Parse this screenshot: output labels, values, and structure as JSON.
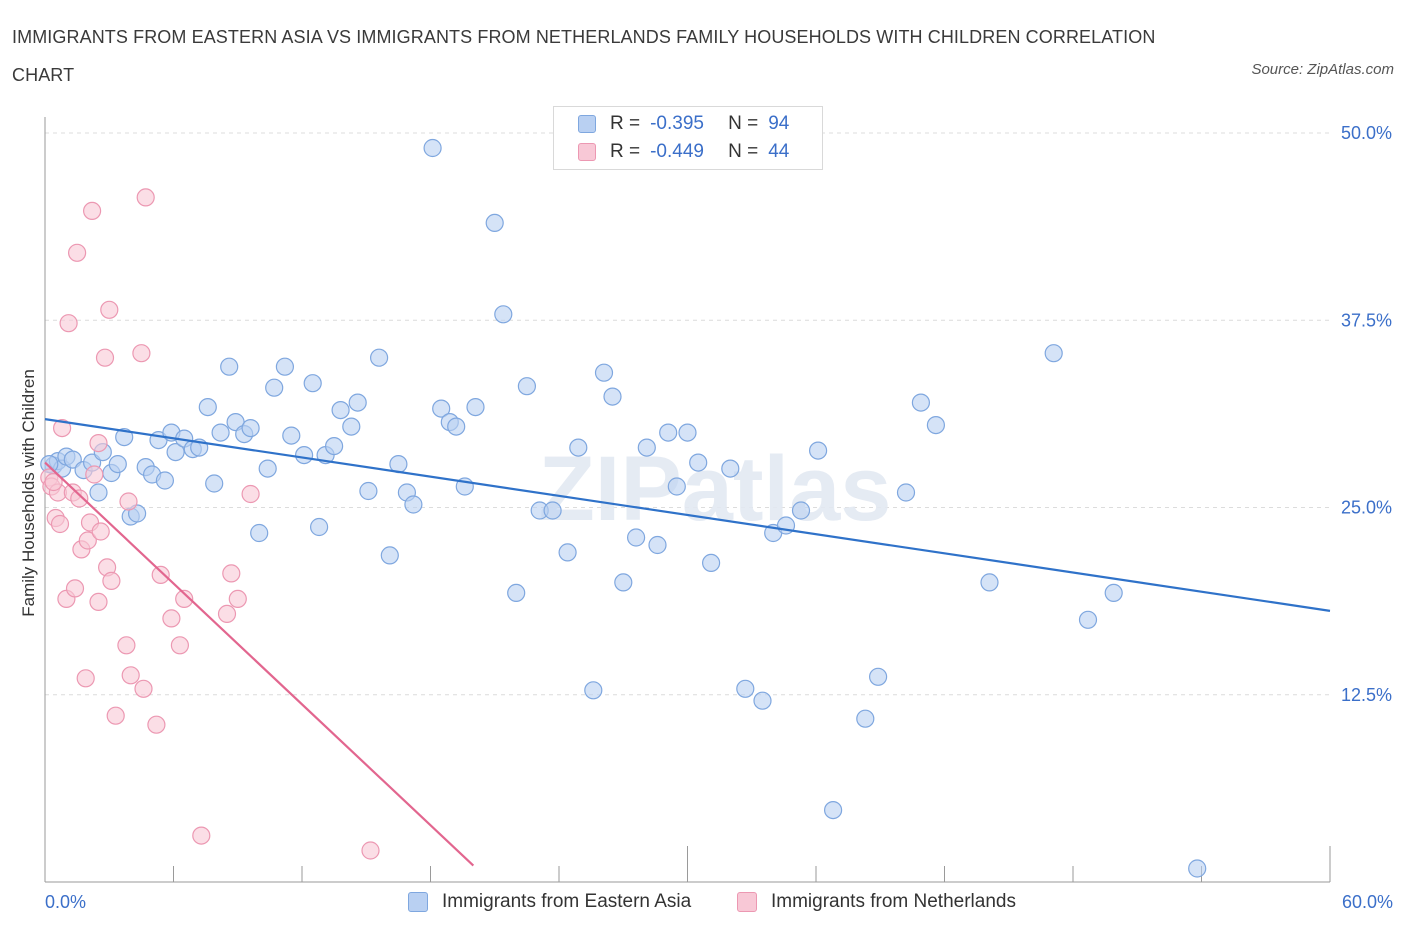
{
  "title": "IMMIGRANTS FROM EASTERN ASIA VS IMMIGRANTS FROM NETHERLANDS FAMILY HOUSEHOLDS WITH CHILDREN CORRELATION CHART",
  "source": "Source: ZipAtlas.com",
  "watermark": "ZIPatlas",
  "colors": {
    "blue_fill": "#b9d0f2",
    "blue_stroke": "#7fa7df",
    "blue_line": "#2f72c9",
    "pink_fill": "#f8c8d6",
    "pink_stroke": "#ec98b2",
    "pink_line": "#e2668f",
    "tick_text": "#3b6fc9"
  },
  "legend": {
    "r_label": "R =",
    "n_label": "N =",
    "rows": [
      {
        "series": "blue",
        "r": "-0.395",
        "n": "94"
      },
      {
        "series": "pink",
        "r": "-0.449",
        "n": "44"
      }
    ]
  },
  "chart_data": {
    "type": "scatter",
    "title": "IMMIGRANTS FROM EASTERN ASIA VS IMMIGRANTS FROM NETHERLANDS FAMILY HOUSEHOLDS WITH CHILDREN CORRELATION CHART",
    "xlabel": "",
    "ylabel": "Family Households with Children",
    "xlim": [
      0,
      60
    ],
    "ylim": [
      0,
      52
    ],
    "x_tick_labels": [
      "0.0%",
      "60.0%"
    ],
    "y_ticks": [
      12.5,
      25.0,
      37.5,
      50.0
    ],
    "y_tick_labels": [
      "12.5%",
      "25.0%",
      "37.5%",
      "50.0%"
    ],
    "grid": true,
    "legend_position": "top-center",
    "series": [
      {
        "name": "Immigrants from Eastern Asia",
        "color": "blue",
        "trend": {
          "x": [
            0,
            60
          ],
          "y": [
            30.9,
            18.1
          ]
        },
        "points": [
          [
            0.4,
            27.8
          ],
          [
            0.6,
            28.1
          ],
          [
            0.8,
            27.6
          ],
          [
            1.0,
            28.4
          ],
          [
            1.3,
            28.2
          ],
          [
            1.8,
            27.5
          ],
          [
            2.2,
            28.0
          ],
          [
            2.5,
            26.0
          ],
          [
            2.7,
            28.7
          ],
          [
            3.1,
            27.3
          ],
          [
            3.4,
            27.9
          ],
          [
            3.7,
            29.7
          ],
          [
            4.0,
            24.4
          ],
          [
            4.3,
            24.6
          ],
          [
            4.7,
            27.7
          ],
          [
            5.0,
            27.2
          ],
          [
            5.3,
            29.5
          ],
          [
            5.6,
            26.8
          ],
          [
            5.9,
            30.0
          ],
          [
            6.1,
            28.7
          ],
          [
            6.5,
            29.6
          ],
          [
            6.9,
            28.9
          ],
          [
            7.2,
            29.0
          ],
          [
            7.6,
            31.7
          ],
          [
            7.9,
            26.6
          ],
          [
            8.2,
            30.0
          ],
          [
            8.6,
            34.4
          ],
          [
            8.9,
            30.7
          ],
          [
            9.3,
            29.9
          ],
          [
            9.6,
            30.3
          ],
          [
            10.0,
            23.3
          ],
          [
            10.4,
            27.6
          ],
          [
            10.7,
            33.0
          ],
          [
            11.2,
            34.4
          ],
          [
            11.5,
            29.8
          ],
          [
            12.1,
            28.5
          ],
          [
            12.5,
            33.3
          ],
          [
            12.8,
            23.7
          ],
          [
            13.1,
            28.5
          ],
          [
            13.5,
            29.1
          ],
          [
            13.8,
            31.5
          ],
          [
            14.3,
            30.4
          ],
          [
            14.6,
            32.0
          ],
          [
            15.1,
            26.1
          ],
          [
            15.6,
            35.0
          ],
          [
            16.1,
            21.8
          ],
          [
            16.5,
            27.9
          ],
          [
            16.9,
            26.0
          ],
          [
            17.2,
            25.2
          ],
          [
            18.1,
            49.0
          ],
          [
            18.5,
            31.6
          ],
          [
            18.9,
            30.7
          ],
          [
            19.2,
            30.4
          ],
          [
            19.6,
            26.4
          ],
          [
            20.1,
            31.7
          ],
          [
            21.0,
            44.0
          ],
          [
            21.4,
            37.9
          ],
          [
            22.0,
            19.3
          ],
          [
            22.5,
            33.1
          ],
          [
            23.1,
            24.8
          ],
          [
            23.7,
            24.8
          ],
          [
            24.4,
            22.0
          ],
          [
            24.9,
            29.0
          ],
          [
            25.6,
            12.8
          ],
          [
            26.1,
            34.0
          ],
          [
            26.5,
            32.4
          ],
          [
            27.0,
            20.0
          ],
          [
            27.6,
            23.0
          ],
          [
            28.1,
            29.0
          ],
          [
            28.6,
            22.5
          ],
          [
            29.1,
            30.0
          ],
          [
            29.5,
            26.4
          ],
          [
            30.0,
            30.0
          ],
          [
            30.5,
            28.0
          ],
          [
            31.1,
            21.3
          ],
          [
            32.0,
            27.6
          ],
          [
            32.7,
            12.9
          ],
          [
            33.5,
            12.1
          ],
          [
            34.0,
            23.3
          ],
          [
            34.6,
            23.8
          ],
          [
            35.3,
            24.8
          ],
          [
            36.1,
            28.8
          ],
          [
            36.8,
            4.8
          ],
          [
            38.3,
            10.9
          ],
          [
            38.9,
            13.7
          ],
          [
            40.2,
            26.0
          ],
          [
            40.9,
            32.0
          ],
          [
            41.6,
            30.5
          ],
          [
            44.1,
            20.0
          ],
          [
            47.1,
            35.3
          ],
          [
            48.7,
            17.5
          ],
          [
            49.9,
            19.3
          ],
          [
            53.8,
            0.9
          ],
          [
            0.2,
            27.9
          ]
        ]
      },
      {
        "name": "Immigrants from Netherlands",
        "color": "pink",
        "trend": {
          "x": [
            0,
            20
          ],
          "y": [
            28.0,
            1.1
          ]
        },
        "points": [
          [
            0.2,
            27.0
          ],
          [
            0.3,
            26.4
          ],
          [
            0.5,
            24.3
          ],
          [
            0.6,
            26.0
          ],
          [
            0.7,
            23.9
          ],
          [
            0.8,
            30.3
          ],
          [
            1.0,
            18.9
          ],
          [
            1.1,
            37.3
          ],
          [
            1.3,
            26.0
          ],
          [
            1.4,
            19.6
          ],
          [
            1.5,
            42.0
          ],
          [
            1.6,
            25.6
          ],
          [
            1.7,
            22.2
          ],
          [
            1.9,
            13.6
          ],
          [
            2.0,
            22.8
          ],
          [
            2.1,
            24.0
          ],
          [
            2.2,
            44.8
          ],
          [
            2.3,
            27.2
          ],
          [
            2.5,
            18.7
          ],
          [
            2.6,
            23.4
          ],
          [
            2.8,
            35.0
          ],
          [
            2.9,
            21.0
          ],
          [
            3.0,
            38.2
          ],
          [
            3.1,
            20.1
          ],
          [
            3.3,
            11.1
          ],
          [
            3.8,
            15.8
          ],
          [
            3.9,
            25.4
          ],
          [
            4.0,
            13.8
          ],
          [
            4.5,
            35.3
          ],
          [
            4.6,
            12.9
          ],
          [
            4.7,
            45.7
          ],
          [
            5.2,
            10.5
          ],
          [
            5.4,
            20.5
          ],
          [
            5.9,
            17.6
          ],
          [
            6.3,
            15.8
          ],
          [
            6.5,
            18.9
          ],
          [
            7.3,
            3.1
          ],
          [
            8.5,
            17.9
          ],
          [
            8.7,
            20.6
          ],
          [
            9.0,
            18.9
          ],
          [
            9.6,
            25.9
          ],
          [
            15.2,
            2.1
          ],
          [
            2.5,
            29.3
          ],
          [
            0.4,
            26.7
          ]
        ]
      }
    ]
  },
  "bottom_legend": [
    {
      "series": "blue",
      "label": "Immigrants from Eastern Asia"
    },
    {
      "series": "pink",
      "label": "Immigrants from Netherlands"
    }
  ]
}
